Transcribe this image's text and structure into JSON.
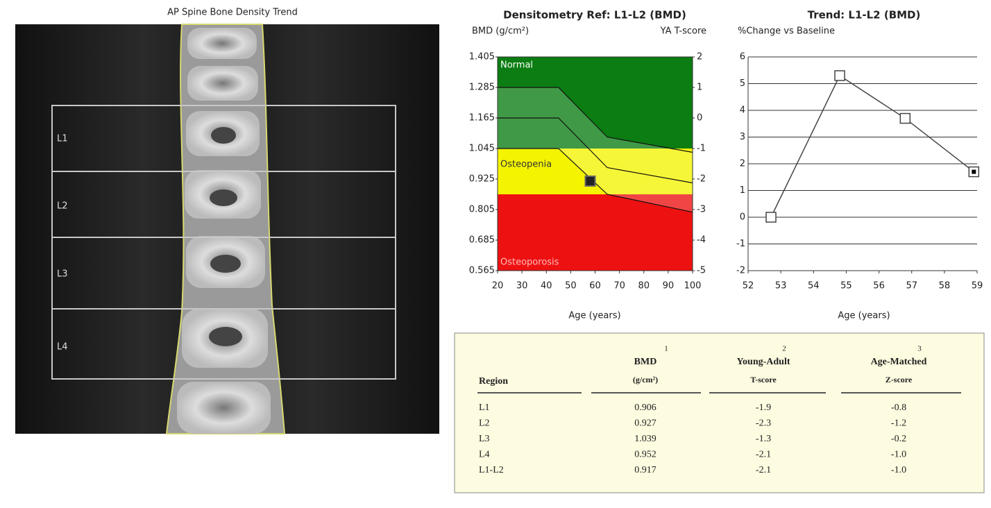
{
  "image": {
    "title": "AP Spine Bone Density Trend",
    "regions": [
      "L1",
      "L2",
      "L3",
      "L4"
    ]
  },
  "chart_data": [
    {
      "type": "area",
      "title": "Densitometry Ref: L1-L2 (BMD)",
      "y_label": "BMD (g/cm²)",
      "y2_label": "YA T-score",
      "x_label": "Age (years)",
      "xlim": [
        20,
        100
      ],
      "xticks": [
        20,
        30,
        40,
        50,
        60,
        70,
        80,
        90,
        100
      ],
      "ylim": [
        0.565,
        1.405
      ],
      "yticks": [
        1.405,
        1.285,
        1.165,
        1.045,
        0.925,
        0.805,
        0.685,
        0.565
      ],
      "y2lim": [
        -5,
        2
      ],
      "y2ticks": [
        2,
        1,
        0,
        -1,
        -2,
        -3,
        -4,
        -5
      ],
      "zones": [
        {
          "name": "Normal",
          "color": "#0b7d12",
          "range": [
            -1,
            2
          ]
        },
        {
          "name": "Osteopenia",
          "color": "#f4f400",
          "range": [
            -2.5,
            -1
          ]
        },
        {
          "name": "Osteoporosis",
          "color": "#ee1111",
          "range": [
            -5,
            -2.5
          ]
        }
      ],
      "reference_x": [
        20,
        45,
        65,
        100
      ],
      "reference_curves": [
        [
          1.285,
          1.285,
          1.09,
          1.03
        ],
        [
          1.165,
          1.165,
          0.97,
          0.91
        ],
        [
          1.045,
          1.045,
          0.865,
          0.795
        ]
      ],
      "x": [
        58
      ],
      "values": [
        0.917
      ],
      "color": "#222222"
    },
    {
      "type": "line",
      "title": "Trend: L1-L2 (BMD)",
      "subtitle": "%Change vs Baseline",
      "x_label": "Age (years)",
      "xlim": [
        52,
        59
      ],
      "xticks": [
        52,
        53,
        54,
        55,
        56,
        57,
        58,
        59
      ],
      "ylim": [
        -2,
        6
      ],
      "yticks": [
        -2,
        -1,
        0,
        1,
        2,
        3,
        4,
        5,
        6
      ],
      "grid": true,
      "x": [
        52.7,
        54.8,
        56.8,
        58.9
      ],
      "values": [
        0,
        5.3,
        3.7,
        1.7
      ],
      "color": "#444444"
    }
  ],
  "table": {
    "header": [
      {
        "lines": [
          "Region"
        ]
      },
      {
        "note": "1",
        "lines": [
          "BMD",
          "(g/cm²)"
        ]
      },
      {
        "note": "2",
        "lines": [
          "Young-Adult",
          "T-score"
        ]
      },
      {
        "note": "3",
        "lines": [
          "Age-Matched",
          "Z-score"
        ]
      }
    ],
    "rows": [
      [
        "L1",
        "0.906",
        "-1.9",
        "-0.8"
      ],
      [
        "L2",
        "0.927",
        "-2.3",
        "-1.2"
      ],
      [
        "L3",
        "1.039",
        "-1.3",
        "-0.2"
      ],
      [
        "L4",
        "0.952",
        "-2.1",
        "-1.0"
      ],
      [
        "L1-L2",
        "0.917",
        "-2.1",
        "-1.0"
      ]
    ]
  }
}
